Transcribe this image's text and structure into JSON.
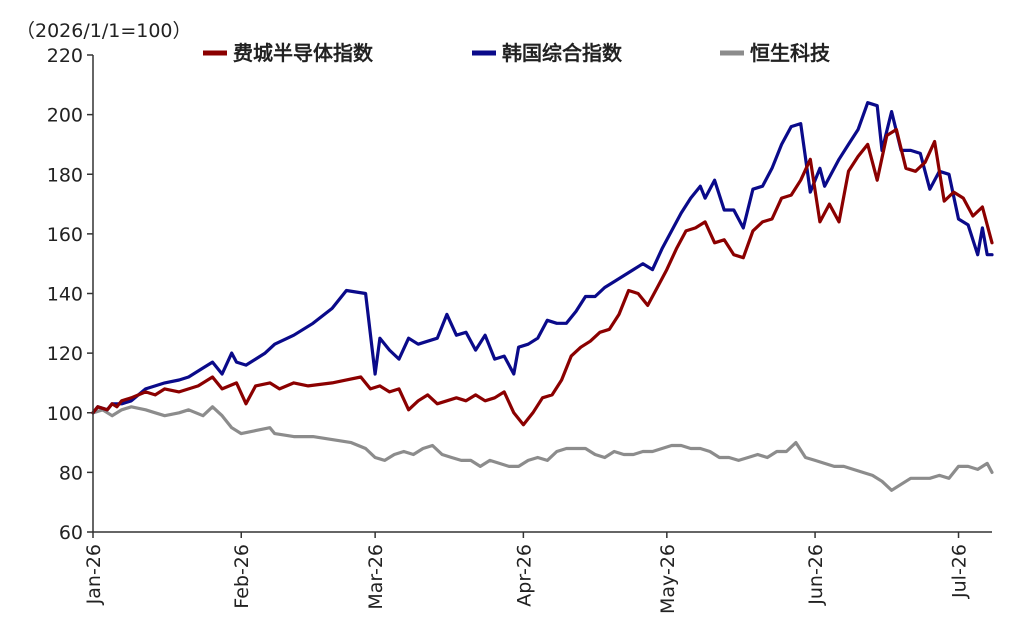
{
  "chart_data": {
    "type": "line",
    "unit_label": "（2026/1/1=100）",
    "ylim": [
      60,
      220
    ],
    "yticks": [
      60,
      80,
      100,
      120,
      140,
      160,
      180,
      200,
      220
    ],
    "xlim": [
      "2026-01-01",
      "2026-07-08"
    ],
    "xticks": [
      {
        "date": "2026-01-01",
        "label": "Jan-26"
      },
      {
        "date": "2026-02-01",
        "label": "Feb-26"
      },
      {
        "date": "2026-03-01",
        "label": "Mar-26"
      },
      {
        "date": "2026-04-01",
        "label": "Apr-26"
      },
      {
        "date": "2026-05-01",
        "label": "May-26"
      },
      {
        "date": "2026-06-01",
        "label": "Jun-26"
      },
      {
        "date": "2026-07-01",
        "label": "Jul-26"
      }
    ],
    "legend_position": "top",
    "grid": false,
    "series": [
      {
        "name": "费城半导体指数",
        "color": "#8B0000",
        "points": [
          [
            "2026-01-01",
            100
          ],
          [
            "2026-01-02",
            102
          ],
          [
            "2026-01-04",
            101
          ],
          [
            "2026-01-05",
            103
          ],
          [
            "2026-01-06",
            102
          ],
          [
            "2026-01-07",
            104
          ],
          [
            "2026-01-09",
            105
          ],
          [
            "2026-01-12",
            107
          ],
          [
            "2026-01-14",
            106
          ],
          [
            "2026-01-16",
            108
          ],
          [
            "2026-01-19",
            107
          ],
          [
            "2026-01-21",
            108
          ],
          [
            "2026-01-23",
            109
          ],
          [
            "2026-01-26",
            112
          ],
          [
            "2026-01-28",
            108
          ],
          [
            "2026-01-31",
            110
          ],
          [
            "2026-02-02",
            103
          ],
          [
            "2026-02-04",
            109
          ],
          [
            "2026-02-07",
            110
          ],
          [
            "2026-02-09",
            108
          ],
          [
            "2026-02-12",
            110
          ],
          [
            "2026-02-15",
            109
          ],
          [
            "2026-02-20",
            110
          ],
          [
            "2026-02-26",
            112
          ],
          [
            "2026-02-28",
            108
          ],
          [
            "2026-03-02",
            109
          ],
          [
            "2026-03-04",
            107
          ],
          [
            "2026-03-06",
            108
          ],
          [
            "2026-03-08",
            101
          ],
          [
            "2026-03-10",
            104
          ],
          [
            "2026-03-12",
            106
          ],
          [
            "2026-03-14",
            103
          ],
          [
            "2026-03-16",
            104
          ],
          [
            "2026-03-18",
            105
          ],
          [
            "2026-03-20",
            104
          ],
          [
            "2026-03-22",
            106
          ],
          [
            "2026-03-24",
            104
          ],
          [
            "2026-03-26",
            105
          ],
          [
            "2026-03-28",
            107
          ],
          [
            "2026-03-30",
            100
          ],
          [
            "2026-04-01",
            96
          ],
          [
            "2026-04-03",
            100
          ],
          [
            "2026-04-05",
            105
          ],
          [
            "2026-04-07",
            106
          ],
          [
            "2026-04-09",
            111
          ],
          [
            "2026-04-11",
            119
          ],
          [
            "2026-04-13",
            122
          ],
          [
            "2026-04-15",
            124
          ],
          [
            "2026-04-17",
            127
          ],
          [
            "2026-04-19",
            128
          ],
          [
            "2026-04-21",
            133
          ],
          [
            "2026-04-23",
            141
          ],
          [
            "2026-04-25",
            140
          ],
          [
            "2026-04-27",
            136
          ],
          [
            "2026-04-29",
            142
          ],
          [
            "2026-05-01",
            148
          ],
          [
            "2026-05-03",
            155
          ],
          [
            "2026-05-05",
            161
          ],
          [
            "2026-05-07",
            162
          ],
          [
            "2026-05-09",
            164
          ],
          [
            "2026-05-11",
            157
          ],
          [
            "2026-05-13",
            158
          ],
          [
            "2026-05-15",
            153
          ],
          [
            "2026-05-17",
            152
          ],
          [
            "2026-05-19",
            161
          ],
          [
            "2026-05-21",
            164
          ],
          [
            "2026-05-23",
            165
          ],
          [
            "2026-05-25",
            172
          ],
          [
            "2026-05-27",
            173
          ],
          [
            "2026-05-29",
            178
          ],
          [
            "2026-05-31",
            185
          ],
          [
            "2026-06-02",
            164
          ],
          [
            "2026-06-04",
            170
          ],
          [
            "2026-06-06",
            164
          ],
          [
            "2026-06-08",
            181
          ],
          [
            "2026-06-10",
            186
          ],
          [
            "2026-06-12",
            190
          ],
          [
            "2026-06-14",
            178
          ],
          [
            "2026-06-16",
            193
          ],
          [
            "2026-06-18",
            195
          ],
          [
            "2026-06-20",
            182
          ],
          [
            "2026-06-22",
            181
          ],
          [
            "2026-06-24",
            184
          ],
          [
            "2026-06-26",
            191
          ],
          [
            "2026-06-28",
            171
          ],
          [
            "2026-06-30",
            174
          ],
          [
            "2026-07-02",
            172
          ],
          [
            "2026-07-04",
            166
          ],
          [
            "2026-07-06",
            169
          ],
          [
            "2026-07-08",
            157
          ]
        ]
      },
      {
        "name": "韩国综合指数",
        "color": "#0A0A8A",
        "points": [
          [
            "2026-01-01",
            100
          ],
          [
            "2026-01-02",
            102
          ],
          [
            "2026-01-04",
            101
          ],
          [
            "2026-01-05",
            103
          ],
          [
            "2026-01-07",
            103
          ],
          [
            "2026-01-09",
            104
          ],
          [
            "2026-01-12",
            108
          ],
          [
            "2026-01-14",
            109
          ],
          [
            "2026-01-16",
            110
          ],
          [
            "2026-01-19",
            111
          ],
          [
            "2026-01-21",
            112
          ],
          [
            "2026-01-24",
            115
          ],
          [
            "2026-01-26",
            117
          ],
          [
            "2026-01-28",
            113
          ],
          [
            "2026-01-30",
            120
          ],
          [
            "2026-01-31",
            117
          ],
          [
            "2026-02-02",
            116
          ],
          [
            "2026-02-04",
            118
          ],
          [
            "2026-02-06",
            120
          ],
          [
            "2026-02-08",
            123
          ],
          [
            "2026-02-12",
            126
          ],
          [
            "2026-02-16",
            130
          ],
          [
            "2026-02-20",
            135
          ],
          [
            "2026-02-23",
            141
          ],
          [
            "2026-02-27",
            140
          ],
          [
            "2026-03-01",
            113
          ],
          [
            "2026-03-02",
            125
          ],
          [
            "2026-03-04",
            121
          ],
          [
            "2026-03-06",
            118
          ],
          [
            "2026-03-08",
            125
          ],
          [
            "2026-03-10",
            123
          ],
          [
            "2026-03-12",
            124
          ],
          [
            "2026-03-14",
            125
          ],
          [
            "2026-03-16",
            133
          ],
          [
            "2026-03-18",
            126
          ],
          [
            "2026-03-20",
            127
          ],
          [
            "2026-03-22",
            121
          ],
          [
            "2026-03-24",
            126
          ],
          [
            "2026-03-26",
            118
          ],
          [
            "2026-03-28",
            119
          ],
          [
            "2026-03-30",
            113
          ],
          [
            "2026-03-31",
            122
          ],
          [
            "2026-04-02",
            123
          ],
          [
            "2026-04-04",
            125
          ],
          [
            "2026-04-06",
            131
          ],
          [
            "2026-04-08",
            130
          ],
          [
            "2026-04-10",
            130
          ],
          [
            "2026-04-12",
            134
          ],
          [
            "2026-04-14",
            139
          ],
          [
            "2026-04-16",
            139
          ],
          [
            "2026-04-18",
            142
          ],
          [
            "2026-04-20",
            144
          ],
          [
            "2026-04-22",
            146
          ],
          [
            "2026-04-24",
            148
          ],
          [
            "2026-04-26",
            150
          ],
          [
            "2026-04-28",
            148
          ],
          [
            "2026-04-30",
            155
          ],
          [
            "2026-05-02",
            161
          ],
          [
            "2026-05-04",
            167
          ],
          [
            "2026-05-06",
            172
          ],
          [
            "2026-05-08",
            176
          ],
          [
            "2026-05-09",
            172
          ],
          [
            "2026-05-11",
            178
          ],
          [
            "2026-05-13",
            168
          ],
          [
            "2026-05-15",
            168
          ],
          [
            "2026-05-17",
            162
          ],
          [
            "2026-05-19",
            175
          ],
          [
            "2026-05-21",
            176
          ],
          [
            "2026-05-23",
            182
          ],
          [
            "2026-05-25",
            190
          ],
          [
            "2026-05-27",
            196
          ],
          [
            "2026-05-29",
            197
          ],
          [
            "2026-05-31",
            174
          ],
          [
            "2026-06-02",
            182
          ],
          [
            "2026-06-03",
            176
          ],
          [
            "2026-06-06",
            185
          ],
          [
            "2026-06-08",
            190
          ],
          [
            "2026-06-10",
            195
          ],
          [
            "2026-06-12",
            204
          ],
          [
            "2026-06-14",
            203
          ],
          [
            "2026-06-15",
            188
          ],
          [
            "2026-06-17",
            201
          ],
          [
            "2026-06-19",
            188
          ],
          [
            "2026-06-21",
            188
          ],
          [
            "2026-06-23",
            187
          ],
          [
            "2026-06-25",
            175
          ],
          [
            "2026-06-27",
            181
          ],
          [
            "2026-06-29",
            180
          ],
          [
            "2026-07-01",
            165
          ],
          [
            "2026-07-03",
            163
          ],
          [
            "2026-07-05",
            153
          ],
          [
            "2026-07-06",
            162
          ],
          [
            "2026-07-07",
            153
          ],
          [
            "2026-07-08",
            153
          ]
        ]
      },
      {
        "name": "恒生科技",
        "color": "#8C8C8C",
        "points": [
          [
            "2026-01-01",
            100
          ],
          [
            "2026-01-03",
            101
          ],
          [
            "2026-01-05",
            99
          ],
          [
            "2026-01-07",
            101
          ],
          [
            "2026-01-09",
            102
          ],
          [
            "2026-01-12",
            101
          ],
          [
            "2026-01-14",
            100
          ],
          [
            "2026-01-16",
            99
          ],
          [
            "2026-01-19",
            100
          ],
          [
            "2026-01-21",
            101
          ],
          [
            "2026-01-24",
            99
          ],
          [
            "2026-01-26",
            102
          ],
          [
            "2026-01-28",
            99
          ],
          [
            "2026-01-30",
            95
          ],
          [
            "2026-02-01",
            93
          ],
          [
            "2026-02-04",
            94
          ],
          [
            "2026-02-07",
            95
          ],
          [
            "2026-02-08",
            93
          ],
          [
            "2026-02-12",
            92
          ],
          [
            "2026-02-16",
            92
          ],
          [
            "2026-02-20",
            91
          ],
          [
            "2026-02-24",
            90
          ],
          [
            "2026-02-27",
            88
          ],
          [
            "2026-03-01",
            85
          ],
          [
            "2026-03-03",
            84
          ],
          [
            "2026-03-05",
            86
          ],
          [
            "2026-03-07",
            87
          ],
          [
            "2026-03-09",
            86
          ],
          [
            "2026-03-11",
            88
          ],
          [
            "2026-03-13",
            89
          ],
          [
            "2026-03-15",
            86
          ],
          [
            "2026-03-17",
            85
          ],
          [
            "2026-03-19",
            84
          ],
          [
            "2026-03-21",
            84
          ],
          [
            "2026-03-23",
            82
          ],
          [
            "2026-03-25",
            84
          ],
          [
            "2026-03-27",
            83
          ],
          [
            "2026-03-29",
            82
          ],
          [
            "2026-03-31",
            82
          ],
          [
            "2026-04-02",
            84
          ],
          [
            "2026-04-04",
            85
          ],
          [
            "2026-04-06",
            84
          ],
          [
            "2026-04-08",
            87
          ],
          [
            "2026-04-10",
            88
          ],
          [
            "2026-04-12",
            88
          ],
          [
            "2026-04-14",
            88
          ],
          [
            "2026-04-16",
            86
          ],
          [
            "2026-04-18",
            85
          ],
          [
            "2026-04-20",
            87
          ],
          [
            "2026-04-22",
            86
          ],
          [
            "2026-04-24",
            86
          ],
          [
            "2026-04-26",
            87
          ],
          [
            "2026-04-28",
            87
          ],
          [
            "2026-04-30",
            88
          ],
          [
            "2026-05-02",
            89
          ],
          [
            "2026-05-04",
            89
          ],
          [
            "2026-05-06",
            88
          ],
          [
            "2026-05-08",
            88
          ],
          [
            "2026-05-10",
            87
          ],
          [
            "2026-05-12",
            85
          ],
          [
            "2026-05-14",
            85
          ],
          [
            "2026-05-16",
            84
          ],
          [
            "2026-05-18",
            85
          ],
          [
            "2026-05-20",
            86
          ],
          [
            "2026-05-22",
            85
          ],
          [
            "2026-05-24",
            87
          ],
          [
            "2026-05-26",
            87
          ],
          [
            "2026-05-28",
            90
          ],
          [
            "2026-05-30",
            85
          ],
          [
            "2026-06-01",
            84
          ],
          [
            "2026-06-03",
            83
          ],
          [
            "2026-06-05",
            82
          ],
          [
            "2026-06-07",
            82
          ],
          [
            "2026-06-09",
            81
          ],
          [
            "2026-06-11",
            80
          ],
          [
            "2026-06-13",
            79
          ],
          [
            "2026-06-15",
            77
          ],
          [
            "2026-06-17",
            74
          ],
          [
            "2026-06-19",
            76
          ],
          [
            "2026-06-21",
            78
          ],
          [
            "2026-06-23",
            78
          ],
          [
            "2026-06-25",
            78
          ],
          [
            "2026-06-27",
            79
          ],
          [
            "2026-06-29",
            78
          ],
          [
            "2026-07-01",
            82
          ],
          [
            "2026-07-03",
            82
          ],
          [
            "2026-07-05",
            81
          ],
          [
            "2026-07-07",
            83
          ],
          [
            "2026-07-08",
            80
          ]
        ]
      }
    ]
  }
}
